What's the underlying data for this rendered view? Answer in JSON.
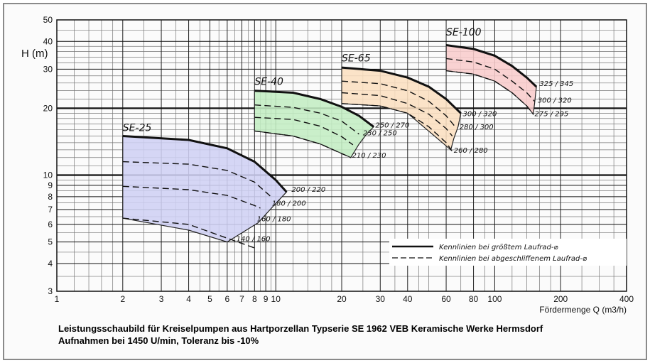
{
  "chart_data": {
    "type": "line",
    "x_scale": "log",
    "y_scale": "log",
    "xlim": [
      1,
      400
    ],
    "ylim": [
      3,
      50
    ],
    "x_ticks": [
      1,
      2,
      3,
      4,
      5,
      6,
      7,
      8,
      9,
      10,
      20,
      30,
      40,
      60,
      80,
      100,
      200,
      400
    ],
    "y_ticks": [
      3,
      4,
      5,
      6,
      7,
      8,
      9,
      10,
      20,
      30,
      40,
      50
    ],
    "x_minor_grid": [
      1.2,
      1.4,
      1.6,
      1.8,
      2.5,
      3.5,
      4.5,
      5.5,
      6.5,
      7.5,
      8.5,
      9.5,
      12,
      14,
      16,
      18,
      25,
      35,
      45,
      50,
      70,
      90,
      120,
      140,
      160,
      180,
      250,
      300,
      350
    ],
    "y_minor_grid": [
      3.5,
      4.5,
      5.5,
      6.5,
      7.5,
      8.5,
      9.5,
      11,
      12,
      13,
      14,
      15,
      16,
      17,
      18,
      19,
      22,
      24,
      26,
      28,
      32,
      34,
      36,
      38,
      45
    ],
    "y_bold_grid": [
      10,
      20
    ],
    "ylabel": "H (m)",
    "xlabel": "Fördermenge Q (m3/h)",
    "pumps": [
      {
        "name": "SE-25",
        "fill": "#cfd0f4",
        "label_at": [
          2.0,
          15.8
        ],
        "curves": [
          {
            "style": "solid",
            "points": [
              [
                2,
                15
              ],
              [
                4,
                14.4
              ],
              [
                6,
                13.2
              ],
              [
                8,
                11.5
              ],
              [
                10,
                9.5
              ],
              [
                11.2,
                8.4
              ]
            ]
          },
          {
            "style": "dashed",
            "points": [
              [
                2,
                11.5
              ],
              [
                4,
                11.2
              ],
              [
                6,
                10.5
              ],
              [
                8,
                9.3
              ],
              [
                9.5,
                8
              ]
            ]
          },
          {
            "style": "dashed",
            "points": [
              [
                2,
                8.9
              ],
              [
                4,
                8.6
              ],
              [
                6,
                8.1
              ],
              [
                8,
                7.3
              ],
              [
                8.5,
                7.1
              ]
            ]
          },
          {
            "style": "dashed",
            "points": [
              [
                2,
                6.4
              ],
              [
                4,
                6
              ],
              [
                6,
                5.2
              ],
              [
                8,
                4.7
              ]
            ]
          }
        ],
        "region": [
          [
            2,
            15
          ],
          [
            4,
            14.4
          ],
          [
            6,
            13.2
          ],
          [
            8,
            11.5
          ],
          [
            10,
            9.5
          ],
          [
            11.2,
            8.4
          ],
          [
            9.8,
            7.3
          ],
          [
            8.3,
            6.1
          ],
          [
            6,
            5.0
          ],
          [
            4,
            5.65
          ],
          [
            2,
            6.4
          ]
        ],
        "annotations": [
          {
            "text": "200 / 220",
            "at": [
              11.8,
              8.4
            ]
          },
          {
            "text": "180 / 200",
            "at": [
              9.6,
              7.3
            ]
          },
          {
            "text": "160 / 180",
            "at": [
              8.2,
              6.2
            ]
          },
          {
            "text": "140 / 160",
            "at": [
              6.6,
              5.05
            ]
          }
        ]
      },
      {
        "name": "SE-40",
        "fill": "#c3edc3",
        "label_at": [
          8.0,
          25.5
        ],
        "curves": [
          {
            "style": "solid",
            "points": [
              [
                8,
                24
              ],
              [
                12,
                23.5
              ],
              [
                16,
                22
              ],
              [
                20,
                20.3
              ],
              [
                24,
                18.5
              ],
              [
                28,
                16.5
              ]
            ]
          },
          {
            "style": "dashed",
            "points": [
              [
                8,
                20.7
              ],
              [
                12,
                20.2
              ],
              [
                16,
                19
              ],
              [
                20,
                17.5
              ],
              [
                24,
                15.3
              ]
            ]
          },
          {
            "style": "dashed",
            "points": [
              [
                8,
                18.2
              ],
              [
                12,
                17.8
              ],
              [
                16,
                16.6
              ],
              [
                20,
                14.9
              ],
              [
                22.5,
                13.7
              ]
            ]
          },
          {
            "style": "dashed",
            "points": [
              [
                8,
                15.8
              ],
              [
                12,
                15
              ],
              [
                16,
                13.8
              ],
              [
                20,
                12.5
              ],
              [
                22,
                12
              ]
            ]
          }
        ],
        "region": [
          [
            8,
            24
          ],
          [
            12,
            23.5
          ],
          [
            16,
            22
          ],
          [
            20,
            20.3
          ],
          [
            24,
            18.5
          ],
          [
            28,
            16.5
          ],
          [
            26,
            15.3
          ],
          [
            24,
            13.8
          ],
          [
            22,
            12
          ],
          [
            16,
            13.8
          ],
          [
            12,
            15
          ],
          [
            8,
            15.8
          ]
        ],
        "annotations": [
          {
            "text": "250 / 270",
            "at": [
              28.5,
              16.4
            ]
          },
          {
            "text": "230 / 250",
            "at": [
              25,
              15.1
            ]
          },
          {
            "text": "210 / 230",
            "at": [
              22.3,
              12.0
            ]
          }
        ]
      },
      {
        "name": "SE-65",
        "fill": "#fbdfc0",
        "label_at": [
          20.0,
          32.5
        ],
        "curves": [
          {
            "style": "solid",
            "points": [
              [
                20,
                30.5
              ],
              [
                30,
                29.5
              ],
              [
                40,
                27.5
              ],
              [
                50,
                25
              ],
              [
                60,
                22
              ],
              [
                70,
                19
              ]
            ]
          },
          {
            "style": "dashed",
            "points": [
              [
                20,
                26.5
              ],
              [
                30,
                25.8
              ],
              [
                40,
                24
              ],
              [
                50,
                21.5
              ],
              [
                60,
                18.5
              ],
              [
                66,
                16.5
              ]
            ]
          },
          {
            "style": "dashed",
            "points": [
              [
                20,
                23.5
              ],
              [
                30,
                22.8
              ],
              [
                40,
                21
              ],
              [
                50,
                18.8
              ],
              [
                60,
                16.2
              ],
              [
                64,
                15
              ]
            ]
          },
          {
            "style": "dashed",
            "points": [
              [
                20,
                21
              ],
              [
                30,
                20.5
              ],
              [
                40,
                19
              ],
              [
                50,
                16.5
              ],
              [
                60,
                14
              ],
              [
                65,
                12.5
              ]
            ]
          }
        ],
        "region": [
          [
            20,
            30.5
          ],
          [
            30,
            29.5
          ],
          [
            40,
            27.5
          ],
          [
            50,
            25
          ],
          [
            60,
            22
          ],
          [
            70,
            19
          ],
          [
            68,
            16.5
          ],
          [
            65,
            14.6
          ],
          [
            63,
            13
          ],
          [
            40,
            19
          ],
          [
            30,
            20.5
          ],
          [
            20,
            21
          ]
        ],
        "annotations": [
          {
            "text": "300 / 320",
            "at": [
              71.5,
              18.4
            ]
          },
          {
            "text": "280 / 300",
            "at": [
              69,
              16.1
            ]
          },
          {
            "text": "260 / 280",
            "at": [
              65,
              12.6
            ]
          }
        ]
      },
      {
        "name": "SE-100",
        "fill": "#f8cccc",
        "label_at": [
          60.0,
          42.5
        ],
        "curves": [
          {
            "style": "solid",
            "points": [
              [
                60,
                38.5
              ],
              [
                80,
                37
              ],
              [
                100,
                34.5
              ],
              [
                120,
                31
              ],
              [
                140,
                27.5
              ],
              [
                155,
                25
              ]
            ]
          },
          {
            "style": "dashed",
            "points": [
              [
                60,
                33.5
              ],
              [
                80,
                32.3
              ],
              [
                100,
                30
              ],
              [
                120,
                26.5
              ],
              [
                140,
                23.5
              ],
              [
                152,
                21.5
              ]
            ]
          },
          {
            "style": "dashed",
            "points": [
              [
                60,
                29.5
              ],
              [
                80,
                28.5
              ],
              [
                100,
                26.5
              ],
              [
                120,
                23.5
              ],
              [
                140,
                20.5
              ],
              [
                150,
                18.8
              ]
            ]
          }
        ],
        "region": [
          [
            60,
            38.5
          ],
          [
            80,
            37
          ],
          [
            100,
            34.5
          ],
          [
            120,
            31
          ],
          [
            140,
            27.5
          ],
          [
            155,
            25
          ],
          [
            152,
            21
          ],
          [
            150,
            18.8
          ],
          [
            140,
            20.5
          ],
          [
            120,
            23.5
          ],
          [
            100,
            26.5
          ],
          [
            80,
            28.5
          ],
          [
            60,
            29.5
          ]
        ],
        "annotations": [
          {
            "text": "325 / 345",
            "at": [
              160,
              25.2
            ]
          },
          {
            "text": "300 / 320",
            "at": [
              157,
              21.2
            ]
          },
          {
            "text": "275 / 295",
            "at": [
              152,
              18.4
            ]
          }
        ]
      }
    ],
    "legend": {
      "placement": "lower-right",
      "entries": [
        {
          "style": "solid",
          "label": "Kennlinien bei größtem Laufrad-⌀"
        },
        {
          "style": "dashed",
          "label": "Kennlinien bei abgeschliffenem Laufrad-⌀"
        }
      ]
    }
  },
  "caption": {
    "line1_bold": "Leistungsschaubild",
    "line1_rest": " für Kreiselpumpen aus Hartporzellan Typserie SE 1962 VEB Keramische Werke Hermsdorf",
    "line2": "Aufnahmen bei 1450 U/min, Toleranz bis -10%"
  }
}
